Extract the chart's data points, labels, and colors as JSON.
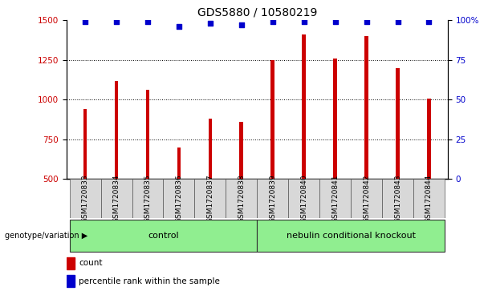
{
  "title": "GDS5880 / 10580219",
  "samples": [
    "GSM1720833",
    "GSM1720834",
    "GSM1720835",
    "GSM1720836",
    "GSM1720837",
    "GSM1720838",
    "GSM1720839",
    "GSM1720840",
    "GSM1720841",
    "GSM1720842",
    "GSM1720843",
    "GSM1720844"
  ],
  "counts": [
    940,
    1120,
    1060,
    700,
    880,
    860,
    1250,
    1410,
    1260,
    1400,
    1200,
    1005
  ],
  "percentiles": [
    99,
    99,
    99,
    96,
    98,
    97,
    99,
    99,
    99,
    99,
    99,
    99
  ],
  "bar_color": "#cc0000",
  "dot_color": "#0000cc",
  "ylim_left": [
    500,
    1500
  ],
  "yticks_left": [
    500,
    750,
    1000,
    1250,
    1500
  ],
  "ylim_right": [
    0,
    100
  ],
  "yticks_right": [
    0,
    25,
    50,
    75,
    100
  ],
  "groups": [
    {
      "label": "control",
      "start": 0,
      "end": 5,
      "color": "#90ee90"
    },
    {
      "label": "nebulin conditional knockout",
      "start": 6,
      "end": 11,
      "color": "#90ee90"
    }
  ],
  "group_label_prefix": "genotype/variation",
  "legend_count_label": "count",
  "legend_percentile_label": "percentile rank within the sample",
  "sample_box_color": "#d8d8d8",
  "title_fontsize": 10,
  "tick_fontsize": 7.5,
  "sample_fontsize": 6.5,
  "group_fontsize": 8,
  "legend_fontsize": 7.5
}
